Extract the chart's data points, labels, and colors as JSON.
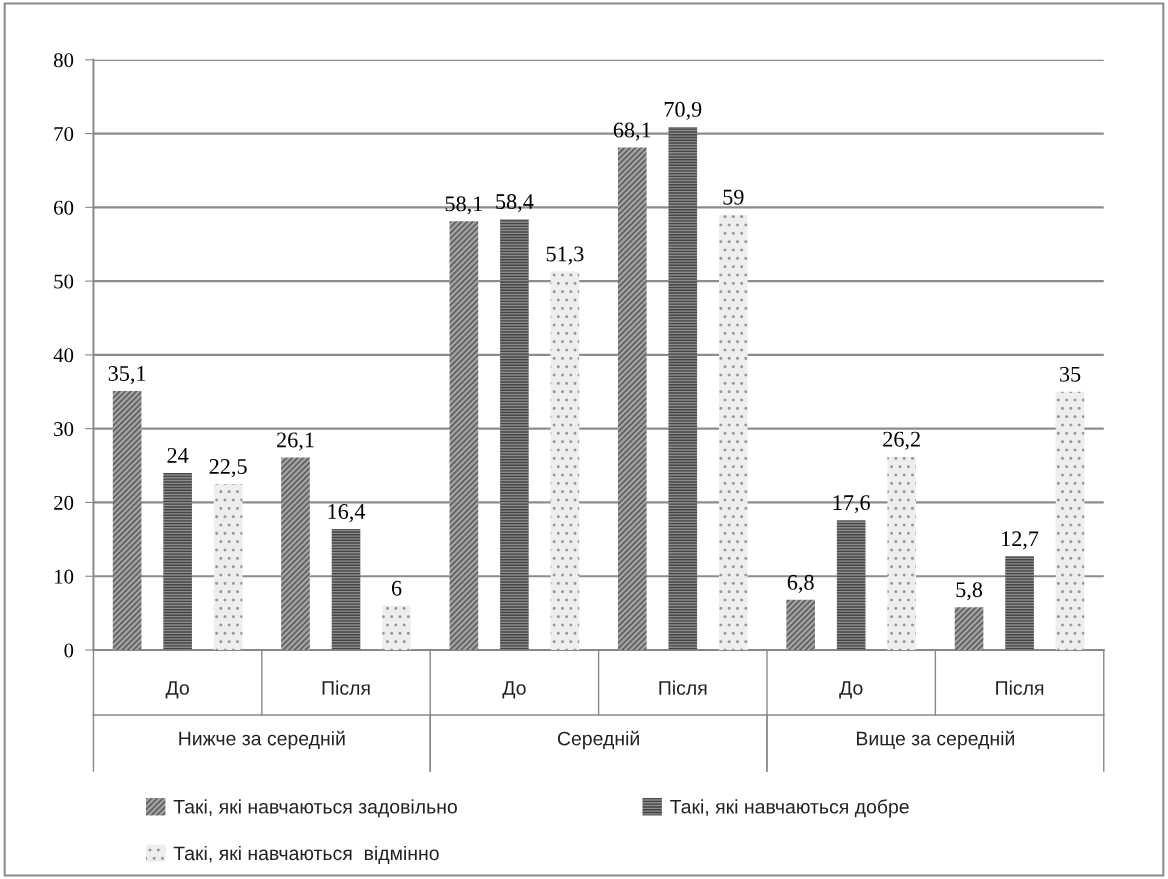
{
  "chart_data": {
    "type": "bar",
    "categories": [
      "До",
      "Після",
      "До",
      "Після",
      "До",
      "Після"
    ],
    "annotations": [
      "Нижче за середній",
      "Середній",
      "Вище за середній"
    ],
    "series": [
      {
        "name": "Такі, які навчаються задовільно",
        "color": "#a0a0a0",
        "values": [
          35.1,
          26.1,
          58.1,
          68.1,
          6.8,
          5.8
        ],
        "value_labels": [
          "35,1",
          "26,1",
          "58,1",
          "68,1",
          "6,8",
          "5,8"
        ]
      },
      {
        "name": "Такі, які навчаються добре",
        "color": "#8c8c8c",
        "values": [
          24,
          16.4,
          58.4,
          70.9,
          17.6,
          12.7
        ],
        "value_labels": [
          "24",
          "16,4",
          "58,4",
          "70,9",
          "17,6",
          "12,7"
        ]
      },
      {
        "name": "Такі, які навчаються  відмінно",
        "color": "#eeeeee",
        "values": [
          22.5,
          6,
          51.3,
          59,
          26.2,
          35
        ],
        "value_labels": [
          "22,5",
          "6",
          "51,3",
          "59",
          "26,2",
          "35"
        ]
      }
    ],
    "ylim": [
      0,
      80
    ],
    "yticks": [
      0,
      10,
      20,
      30,
      40,
      50,
      60,
      70,
      80
    ],
    "grid": "y",
    "legend": "bottom"
  }
}
